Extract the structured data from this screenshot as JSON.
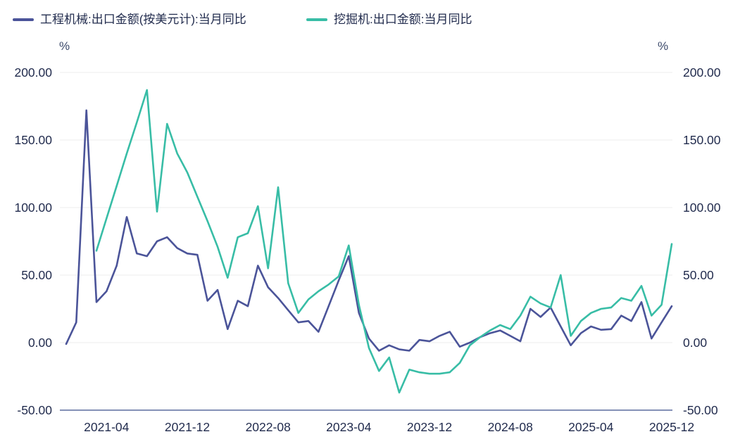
{
  "legend": [
    {
      "label": "工程机械:出口金额(按美元计):当月同比",
      "color": "#4b5499"
    },
    {
      "label": "挖掘机:出口金额:当月同比",
      "color": "#38bda6"
    }
  ],
  "colors": {
    "series_blue": "#4b5499",
    "series_teal": "#38bda6",
    "axis_line": "#5c6c9e",
    "grid_line": "#ececec",
    "tick_text": "#222c4e"
  },
  "chart_data": {
    "type": "line",
    "title": "",
    "unit_left": "%",
    "unit_right": "%",
    "grid": true,
    "legend_position": "top-left",
    "ylim": [
      -50,
      200
    ],
    "yticks": [
      200,
      150,
      100,
      50,
      0,
      -50
    ],
    "ytick_labels": [
      "200.00",
      "150.00",
      "100.00",
      "50.00",
      "0.00",
      "-50.00"
    ],
    "xtick_labels": [
      "2021-04",
      "2021-12",
      "2022-08",
      "2023-04",
      "2023-12",
      "2024-08",
      "2025-04",
      "2025-12"
    ],
    "xtick_indices": [
      4,
      12,
      20,
      28,
      36,
      44,
      52,
      60
    ],
    "x": [
      "2020-12",
      "2021-01",
      "2021-02",
      "2021-03",
      "2021-04",
      "2021-05",
      "2021-06",
      "2021-07",
      "2021-08",
      "2021-09",
      "2021-10",
      "2021-11",
      "2021-12",
      "2022-01",
      "2022-02",
      "2022-03",
      "2022-04",
      "2022-05",
      "2022-06",
      "2022-07",
      "2022-08",
      "2022-09",
      "2022-10",
      "2022-11",
      "2022-12",
      "2023-01",
      "2023-02",
      "2023-03",
      "2023-04",
      "2023-05",
      "2023-06",
      "2023-07",
      "2023-08",
      "2023-09",
      "2023-10",
      "2023-11",
      "2023-12",
      "2024-01",
      "2024-02",
      "2024-03",
      "2024-04",
      "2024-05",
      "2024-06",
      "2024-07",
      "2024-08",
      "2024-09",
      "2024-10",
      "2024-11",
      "2024-12",
      "2025-01",
      "2025-02",
      "2025-03",
      "2025-04",
      "2025-05",
      "2025-06",
      "2025-07",
      "2025-08",
      "2025-09",
      "2025-10",
      "2025-11",
      "2025-12"
    ],
    "series": [
      {
        "name": "工程机械:出口金额(按美元计):当月同比",
        "color": "#4b5499",
        "start_index": 0,
        "values": [
          -1,
          15,
          172,
          30,
          38,
          57,
          93,
          66,
          64,
          75,
          78,
          70,
          66,
          65,
          31,
          39,
          10,
          31,
          27,
          57,
          41,
          33,
          24,
          15,
          16,
          8,
          27,
          46,
          64,
          22,
          3,
          -6,
          -2,
          -5,
          -6,
          2,
          1,
          5,
          8,
          -3,
          0,
          4,
          7,
          9,
          5,
          1,
          25,
          19,
          26,
          12,
          -2,
          7,
          12,
          9.5,
          10,
          20,
          16,
          30,
          3,
          15,
          27
        ]
      },
      {
        "name": "挖掘机:出口金额:当月同比",
        "color": "#38bda6",
        "start_index": 3,
        "values": [
          68,
          92,
          116,
          140,
          163,
          187,
          97,
          162,
          140,
          126,
          108,
          90,
          71,
          48,
          78,
          81,
          101,
          55,
          115,
          44,
          22,
          32,
          38,
          43,
          49,
          72,
          28,
          -4,
          -21,
          -11,
          -37,
          -20,
          -22,
          -23,
          -23,
          -22,
          -15,
          -2,
          4,
          9,
          13,
          10,
          20,
          34,
          29,
          26,
          50,
          5,
          16,
          22,
          25,
          26,
          33,
          31,
          42,
          20,
          28,
          73
        ]
      }
    ]
  }
}
